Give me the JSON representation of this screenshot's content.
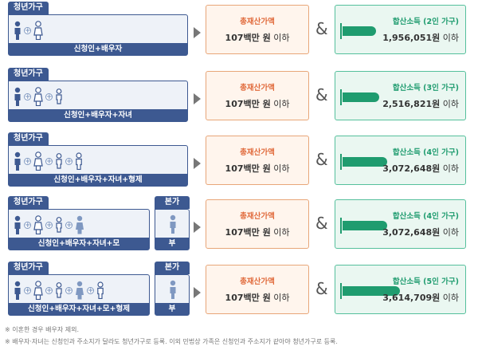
{
  "rows": [
    {
      "household_tag": "청년가구",
      "household_label": "신청인+배우자",
      "asset_title": "총재산가액",
      "asset_amount": "107백만 원",
      "asset_suffix": "이하",
      "income_title": "합산소득 (2인 가구)",
      "income_amount": "1,956,051원",
      "income_suffix": "이하"
    },
    {
      "household_tag": "청년가구",
      "household_label": "신청인+배우자+자녀",
      "asset_title": "총재산가액",
      "asset_amount": "107백만 원",
      "asset_suffix": "이하",
      "income_title": "합산소득 (3인 가구)",
      "income_amount": "2,516,821원",
      "income_suffix": "이하"
    },
    {
      "household_tag": "청년가구",
      "household_label": "신청인+배우자+자녀+형제",
      "asset_title": "총재산가액",
      "asset_amount": "107백만 원",
      "asset_suffix": "이하",
      "income_title": "합산소득 (4인 가구)",
      "income_amount": "3,072,648원",
      "income_suffix": "이하"
    },
    {
      "household_tag": "청년가구",
      "household_label": "신청인+배우자+자녀+모",
      "parent_tag": "본가",
      "parent_label": "부",
      "asset_title": "총재산가액",
      "asset_amount": "107백만 원",
      "asset_suffix": "이하",
      "income_title": "합산소득 (4인 가구)",
      "income_amount": "3,072,648원",
      "income_suffix": "이하"
    },
    {
      "household_tag": "청년가구",
      "household_label": "신청인+배우자+자녀+모+형제",
      "parent_tag": "본가",
      "parent_label": "부",
      "asset_title": "총재산가액",
      "asset_amount": "107백만 원",
      "asset_suffix": "이하",
      "income_title": "합산소득 (5인 가구)",
      "income_amount": "3,614,709원",
      "income_suffix": "이하"
    }
  ],
  "notes": [
    "※ 이혼한 경우 배우자 제외.",
    "※ 배우자·자녀는 신청인과 주소지가 달라도 청년가구로 등록. 이외 민법상 가족은 신청인과 주소지가 같아야 청년가구로 등록."
  ],
  "icons": {
    "person": "person-icon",
    "plus": "plus-icon",
    "bar": "income-bar-icon"
  },
  "colors": {
    "navy": "#3d5991",
    "orange": "#e0693a",
    "green": "#1f9c6f"
  }
}
